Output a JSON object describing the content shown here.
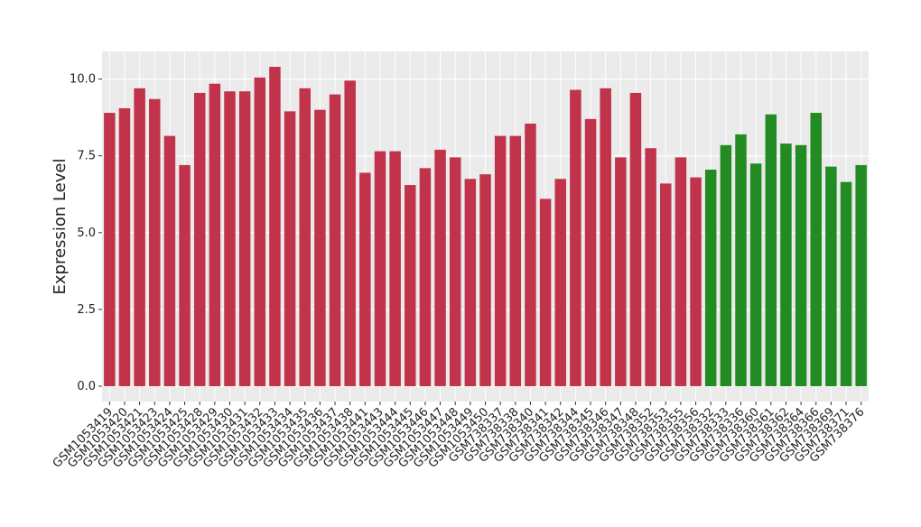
{
  "chart_data": {
    "type": "bar",
    "y_label": "Expression Level",
    "categories": [
      "GSM1053419",
      "GSM1053420",
      "GSM1053421",
      "GSM1053423",
      "GSM1053424",
      "GSM1053425",
      "GSM1053428",
      "GSM1053429",
      "GSM1053430",
      "GSM1053431",
      "GSM1053432",
      "GSM1053433",
      "GSM1053434",
      "GSM1053435",
      "GSM1053436",
      "GSM1053437",
      "GSM1053438",
      "GSM1053441",
      "GSM1053443",
      "GSM1053444",
      "GSM1053445",
      "GSM1053446",
      "GSM1053447",
      "GSM1053448",
      "GSM1053449",
      "GSM1053450",
      "GSM738337",
      "GSM738338",
      "GSM738340",
      "GSM738341",
      "GSM738342",
      "GSM738344",
      "GSM738345",
      "GSM738346",
      "GSM738347",
      "GSM738348",
      "GSM738352",
      "GSM738353",
      "GSM738355",
      "GSM738356",
      "GSM738332",
      "GSM738333",
      "GSM738336",
      "GSM738360",
      "GSM738361",
      "GSM738362",
      "GSM738364",
      "GSM738366",
      "GSM738369",
      "GSM738371",
      "GSM738376"
    ],
    "values": [
      8.9,
      9.05,
      9.7,
      9.35,
      8.15,
      7.2,
      9.55,
      9.85,
      9.6,
      9.6,
      10.05,
      10.4,
      8.95,
      9.7,
      9.0,
      9.5,
      9.95,
      6.95,
      7.65,
      7.65,
      6.55,
      7.1,
      7.7,
      7.45,
      6.75,
      6.9,
      8.15,
      8.15,
      8.55,
      6.1,
      6.75,
      9.65,
      8.7,
      9.7,
      7.45,
      9.55,
      7.75,
      6.6,
      7.45,
      6.8,
      7.05,
      7.85,
      8.2,
      7.25,
      8.85,
      7.9,
      7.85,
      8.9,
      7.15,
      6.65,
      7.2
    ],
    "colors": [
      "#c0334b",
      "#c0334b",
      "#c0334b",
      "#c0334b",
      "#c0334b",
      "#c0334b",
      "#c0334b",
      "#c0334b",
      "#c0334b",
      "#c0334b",
      "#c0334b",
      "#c0334b",
      "#c0334b",
      "#c0334b",
      "#c0334b",
      "#c0334b",
      "#c0334b",
      "#c0334b",
      "#c0334b",
      "#c0334b",
      "#c0334b",
      "#c0334b",
      "#c0334b",
      "#c0334b",
      "#c0334b",
      "#c0334b",
      "#c0334b",
      "#c0334b",
      "#c0334b",
      "#c0334b",
      "#c0334b",
      "#c0334b",
      "#c0334b",
      "#c0334b",
      "#c0334b",
      "#c0334b",
      "#c0334b",
      "#c0334b",
      "#c0334b",
      "#c0334b",
      "#228b22",
      "#228b22",
      "#228b22",
      "#228b22",
      "#228b22",
      "#228b22",
      "#228b22",
      "#228b22",
      "#228b22",
      "#228b22",
      "#228b22"
    ],
    "ylim": [
      -0.5,
      10.9
    ],
    "yticks": [
      {
        "value": 0,
        "label": "0.0"
      },
      {
        "value": 2.5,
        "label": "2.5"
      },
      {
        "value": 5,
        "label": "5.0"
      },
      {
        "value": 7.5,
        "label": "7.5"
      },
      {
        "value": 10,
        "label": "10.0"
      }
    ],
    "grid": true
  }
}
